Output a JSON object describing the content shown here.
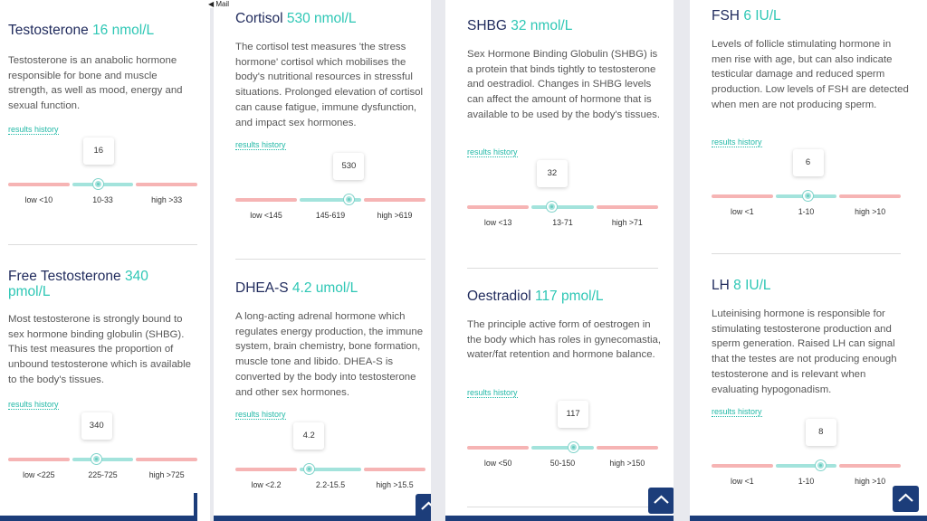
{
  "status_bar": {
    "back_label": "◀ Mail"
  },
  "panels": [
    {
      "cards": [
        {
          "name": "Testosterone",
          "value": "16 nmol/L",
          "description": "Testosterone is an anabolic hormone responsible for bone and muscle strength, as well as mood, energy and sexual function.",
          "history_link": "results history",
          "gauge": {
            "reading": "16",
            "low_label": "low <10",
            "mid_label": "10-33",
            "high_label": "high >33",
            "position": 0.43
          }
        },
        {
          "name": "Free Testosterone",
          "value": "340 pmol/L",
          "description": "Most testosterone is strongly bound to sex hormone binding globulin (SHBG). This test measures the proportion of unbound testosterone which is available to the body's tissues.",
          "history_link": "results history",
          "gauge": {
            "reading": "340",
            "low_label": "low <225",
            "mid_label": "225-725",
            "high_label": "high >725",
            "position": 0.4
          }
        }
      ]
    },
    {
      "cards": [
        {
          "name": "Cortisol",
          "value": "530 nmol/L",
          "description": "The cortisol test measures 'the stress hormone' cortisol which mobilises the body's nutritional resources in stressful situations. Prolonged elevation of cortisol can cause fatigue, immune dysfunction, and impact sex hormones.",
          "history_link": "results history",
          "gauge": {
            "reading": "530",
            "low_label": "low <145",
            "mid_label": "145-619",
            "high_label": "high >619",
            "position": 0.8
          }
        },
        {
          "name": "DHEA-S",
          "value": "4.2 umol/L",
          "description": "A long-acting adrenal hormone which regulates energy production, the immune system, brain chemistry, bone formation, muscle tone and libido. DHEA-S is converted by the body into testosterone and other sex hormones.",
          "history_link": "results history",
          "gauge": {
            "reading": "4.2",
            "low_label": "low <2.2",
            "mid_label": "2.2-15.5",
            "high_label": "high >15.5",
            "position": 0.15
          }
        }
      ]
    },
    {
      "cards": [
        {
          "name": "SHBG",
          "value": "32 nmol/L",
          "description": "Sex Hormone Binding Globulin (SHBG) is a protein that binds tightly to testosterone and oestradiol. Changes in SHBG levels can affect the amount of hormone that is available to be used by the body's tissues.",
          "history_link": "results history",
          "gauge": {
            "reading": "32",
            "low_label": "low <13",
            "mid_label": "13-71",
            "high_label": "high >71",
            "position": 0.33
          }
        },
        {
          "name": "Oestradiol",
          "value": "117 pmol/L",
          "description": "The principle active form of oestrogen in the body which has roles in gynecomastia, water/fat retention and hormone balance.",
          "history_link": "results history",
          "gauge": {
            "reading": "117",
            "low_label": "low <50",
            "mid_label": "50-150",
            "high_label": "high >150",
            "position": 0.67
          }
        }
      ]
    },
    {
      "cards": [
        {
          "name": "FSH",
          "value": "6 IU/L",
          "description": "Levels of follicle stimulating hormone in men rise with age, but can also indicate testicular damage and reduced sperm production. Low levels of FSH are detected when men are not producing sperm.",
          "history_link": "results history",
          "gauge": {
            "reading": "6",
            "low_label": "low <1",
            "mid_label": "1-10",
            "high_label": "high >10",
            "position": 0.53
          }
        },
        {
          "name": "LH",
          "value": "8 IU/L",
          "description": "Luteinising hormone is responsible for stimulating testosterone production and sperm generation. Raised LH can signal that the testes are not producing enough testosterone and is relevant when evaluating hypogonadism.",
          "history_link": "results history",
          "gauge": {
            "reading": "8",
            "low_label": "low <1",
            "mid_label": "1-10",
            "high_label": "high >10",
            "position": 0.74
          }
        }
      ]
    }
  ],
  "colors": {
    "title": "#1f2a5c",
    "value": "#2ec7b5",
    "low_high_bar": "#f6b4b4",
    "normal_bar": "#a3e3dc",
    "nav_button": "#1c3d7a"
  },
  "icons": {
    "scroll_top": "chevron-up-icon"
  }
}
